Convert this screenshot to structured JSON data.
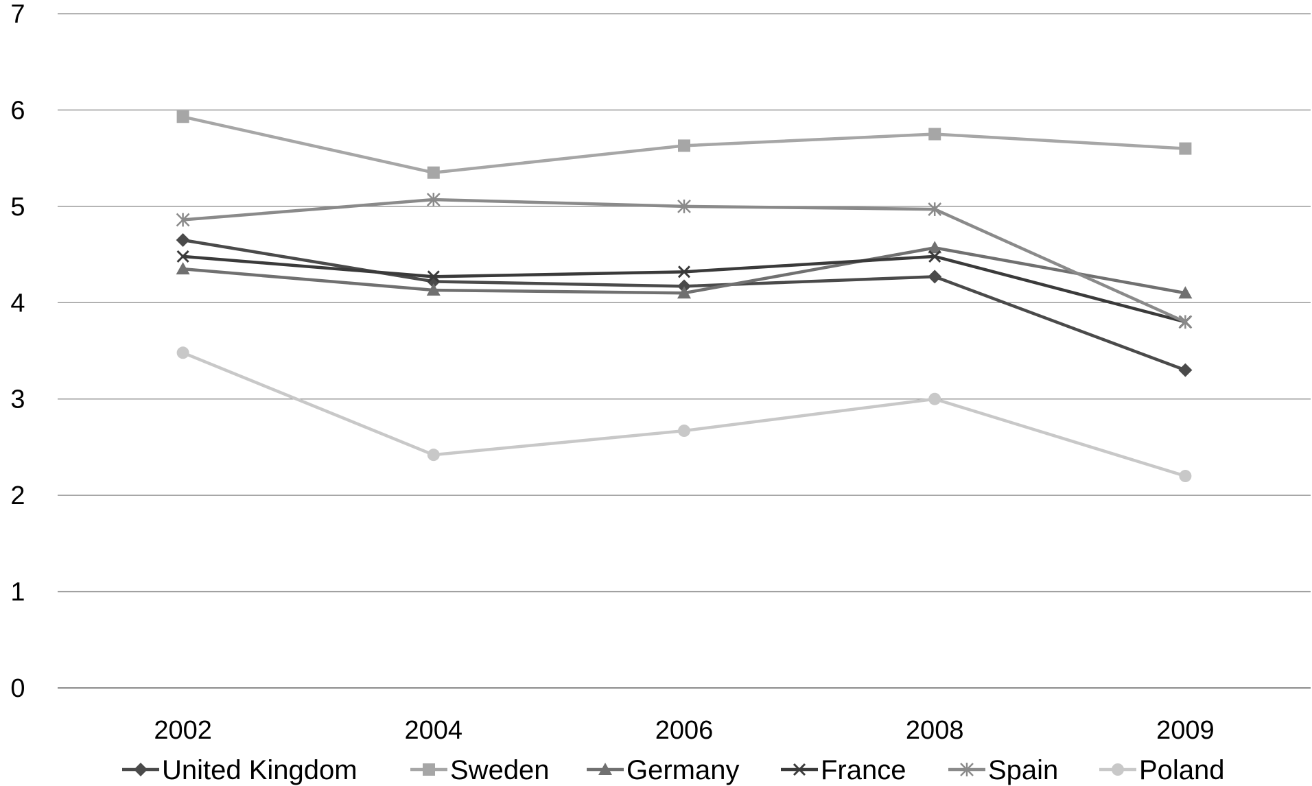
{
  "chart_data": {
    "type": "line",
    "categories": [
      "2002",
      "2004",
      "2006",
      "2008",
      "2009"
    ],
    "ylim": [
      0,
      7
    ],
    "yticks": [
      0,
      1,
      2,
      3,
      4,
      5,
      6,
      7
    ],
    "grid": true,
    "legend_position": "bottom",
    "series": [
      {
        "name": "United Kingdom",
        "marker": "diamond",
        "color": "#4a4a4a",
        "values": [
          4.65,
          4.22,
          4.17,
          4.27,
          3.3
        ]
      },
      {
        "name": "Sweden",
        "marker": "square",
        "color": "#a6a6a6",
        "values": [
          5.93,
          5.35,
          5.63,
          5.75,
          5.6
        ]
      },
      {
        "name": "Germany",
        "marker": "triangle",
        "color": "#707070",
        "values": [
          4.35,
          4.13,
          4.1,
          4.57,
          4.1
        ]
      },
      {
        "name": "France",
        "marker": "x",
        "color": "#3a3a3a",
        "values": [
          4.48,
          4.27,
          4.32,
          4.48,
          3.8
        ]
      },
      {
        "name": "Spain",
        "marker": "asterisk",
        "color": "#8a8a8a",
        "values": [
          4.86,
          5.07,
          5.0,
          4.97,
          3.8
        ]
      },
      {
        "name": "Poland",
        "marker": "circle",
        "color": "#c8c8c8",
        "values": [
          3.48,
          2.42,
          2.67,
          3.0,
          2.2
        ]
      }
    ]
  }
}
